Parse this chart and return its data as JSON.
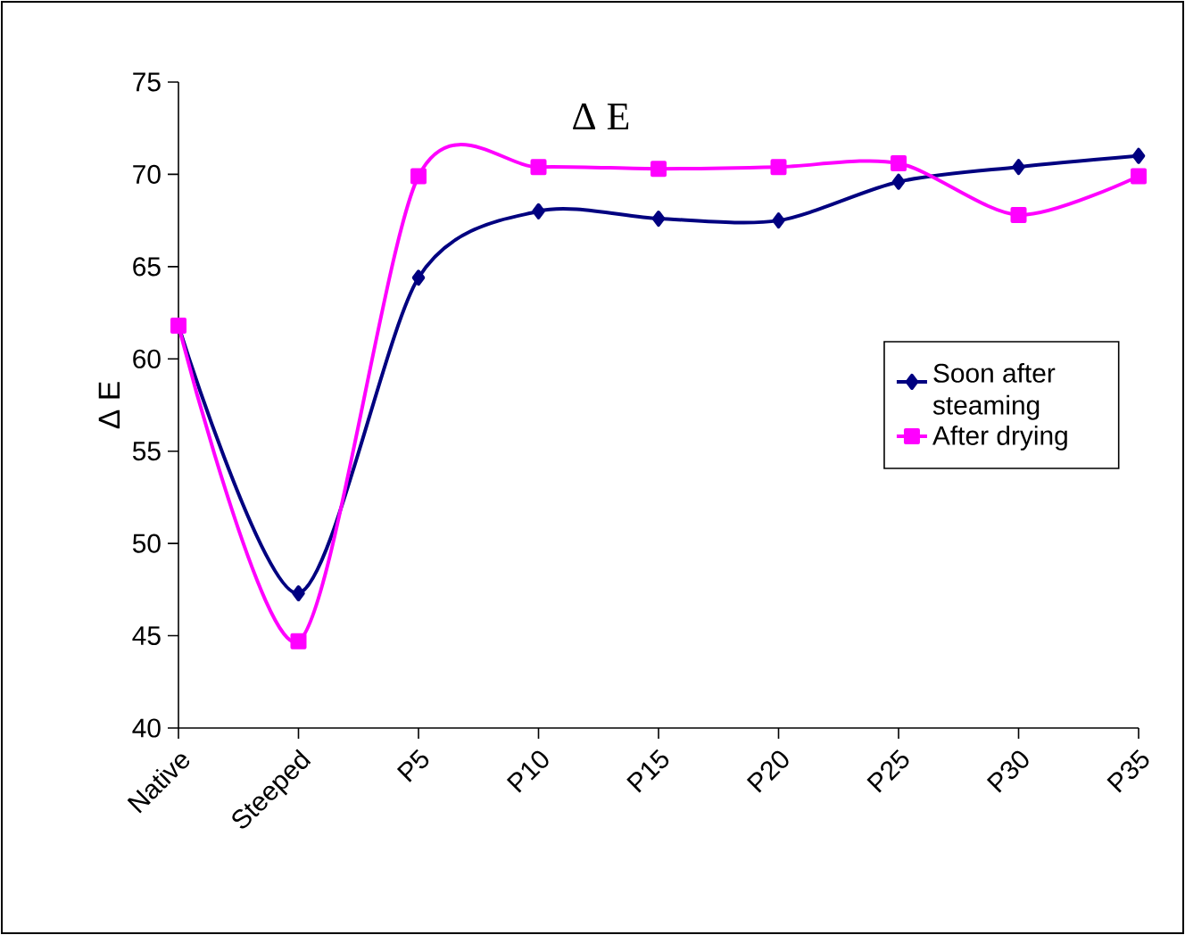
{
  "chart_data": {
    "type": "line",
    "title": "Δ E",
    "ylabel": "Δ E",
    "categories": [
      "Native",
      "Steeped",
      "P5",
      "P10",
      "P15",
      "P20",
      "P25",
      "P30",
      "P35"
    ],
    "ylim": [
      40,
      75
    ],
    "yticks": [
      40,
      45,
      50,
      55,
      60,
      65,
      70,
      75
    ],
    "legend": "right",
    "grid": false,
    "series": [
      {
        "name": "Soon after steaming",
        "color": "#000080",
        "marker": "diamond",
        "values": [
          61.8,
          47.3,
          64.4,
          68.0,
          67.6,
          67.5,
          69.6,
          70.4,
          71.0
        ]
      },
      {
        "name": "After drying",
        "color": "#ff00ff",
        "marker": "square",
        "values": [
          61.8,
          44.7,
          69.9,
          70.4,
          70.3,
          70.4,
          70.6,
          67.8,
          69.9
        ]
      }
    ]
  }
}
